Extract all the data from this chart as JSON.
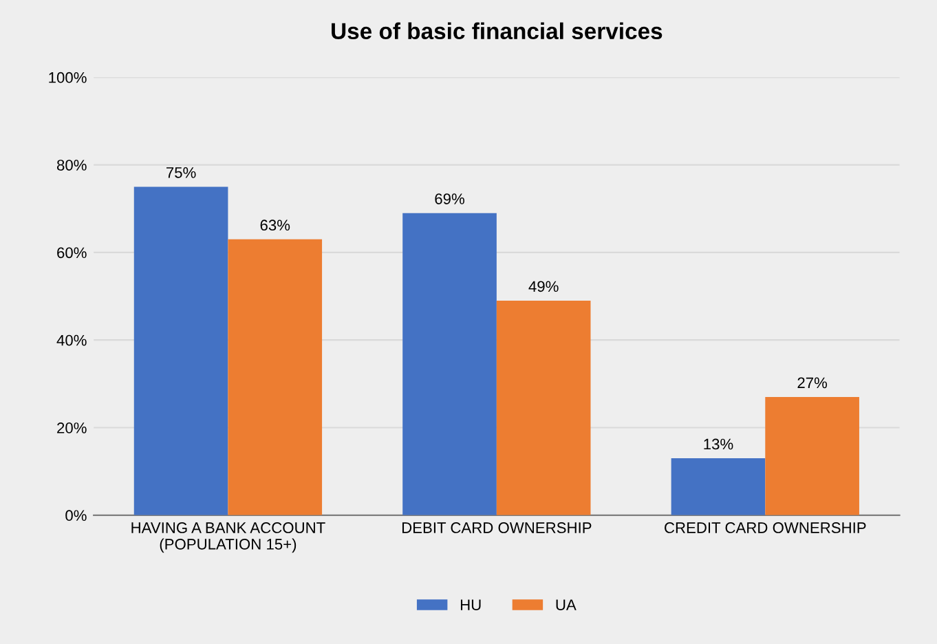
{
  "chart_data": {
    "type": "bar",
    "title": "Use of basic financial services",
    "categories": [
      "HAVING A BANK ACCOUNT\n(POPULATION 15+)",
      "DEBIT CARD OWNERSHIP",
      "CREDIT CARD OWNERSHIP"
    ],
    "series": [
      {
        "name": "HU",
        "color": "#4472c4",
        "values": [
          75,
          69,
          13
        ],
        "value_labels": [
          "75%",
          "69%",
          "13%"
        ]
      },
      {
        "name": "UA",
        "color": "#ed7d31",
        "values": [
          63,
          49,
          27
        ],
        "value_labels": [
          "63%",
          "49%",
          "27%"
        ]
      }
    ],
    "ylim": [
      0,
      100
    ],
    "yticks": [
      {
        "value": 0,
        "label": "0%"
      },
      {
        "value": 20,
        "label": "20%"
      },
      {
        "value": 40,
        "label": "40%"
      },
      {
        "value": 60,
        "label": "60%"
      },
      {
        "value": 80,
        "label": "80%"
      },
      {
        "value": 100,
        "label": "100%"
      }
    ],
    "grid": "y",
    "legend": "bottom"
  }
}
